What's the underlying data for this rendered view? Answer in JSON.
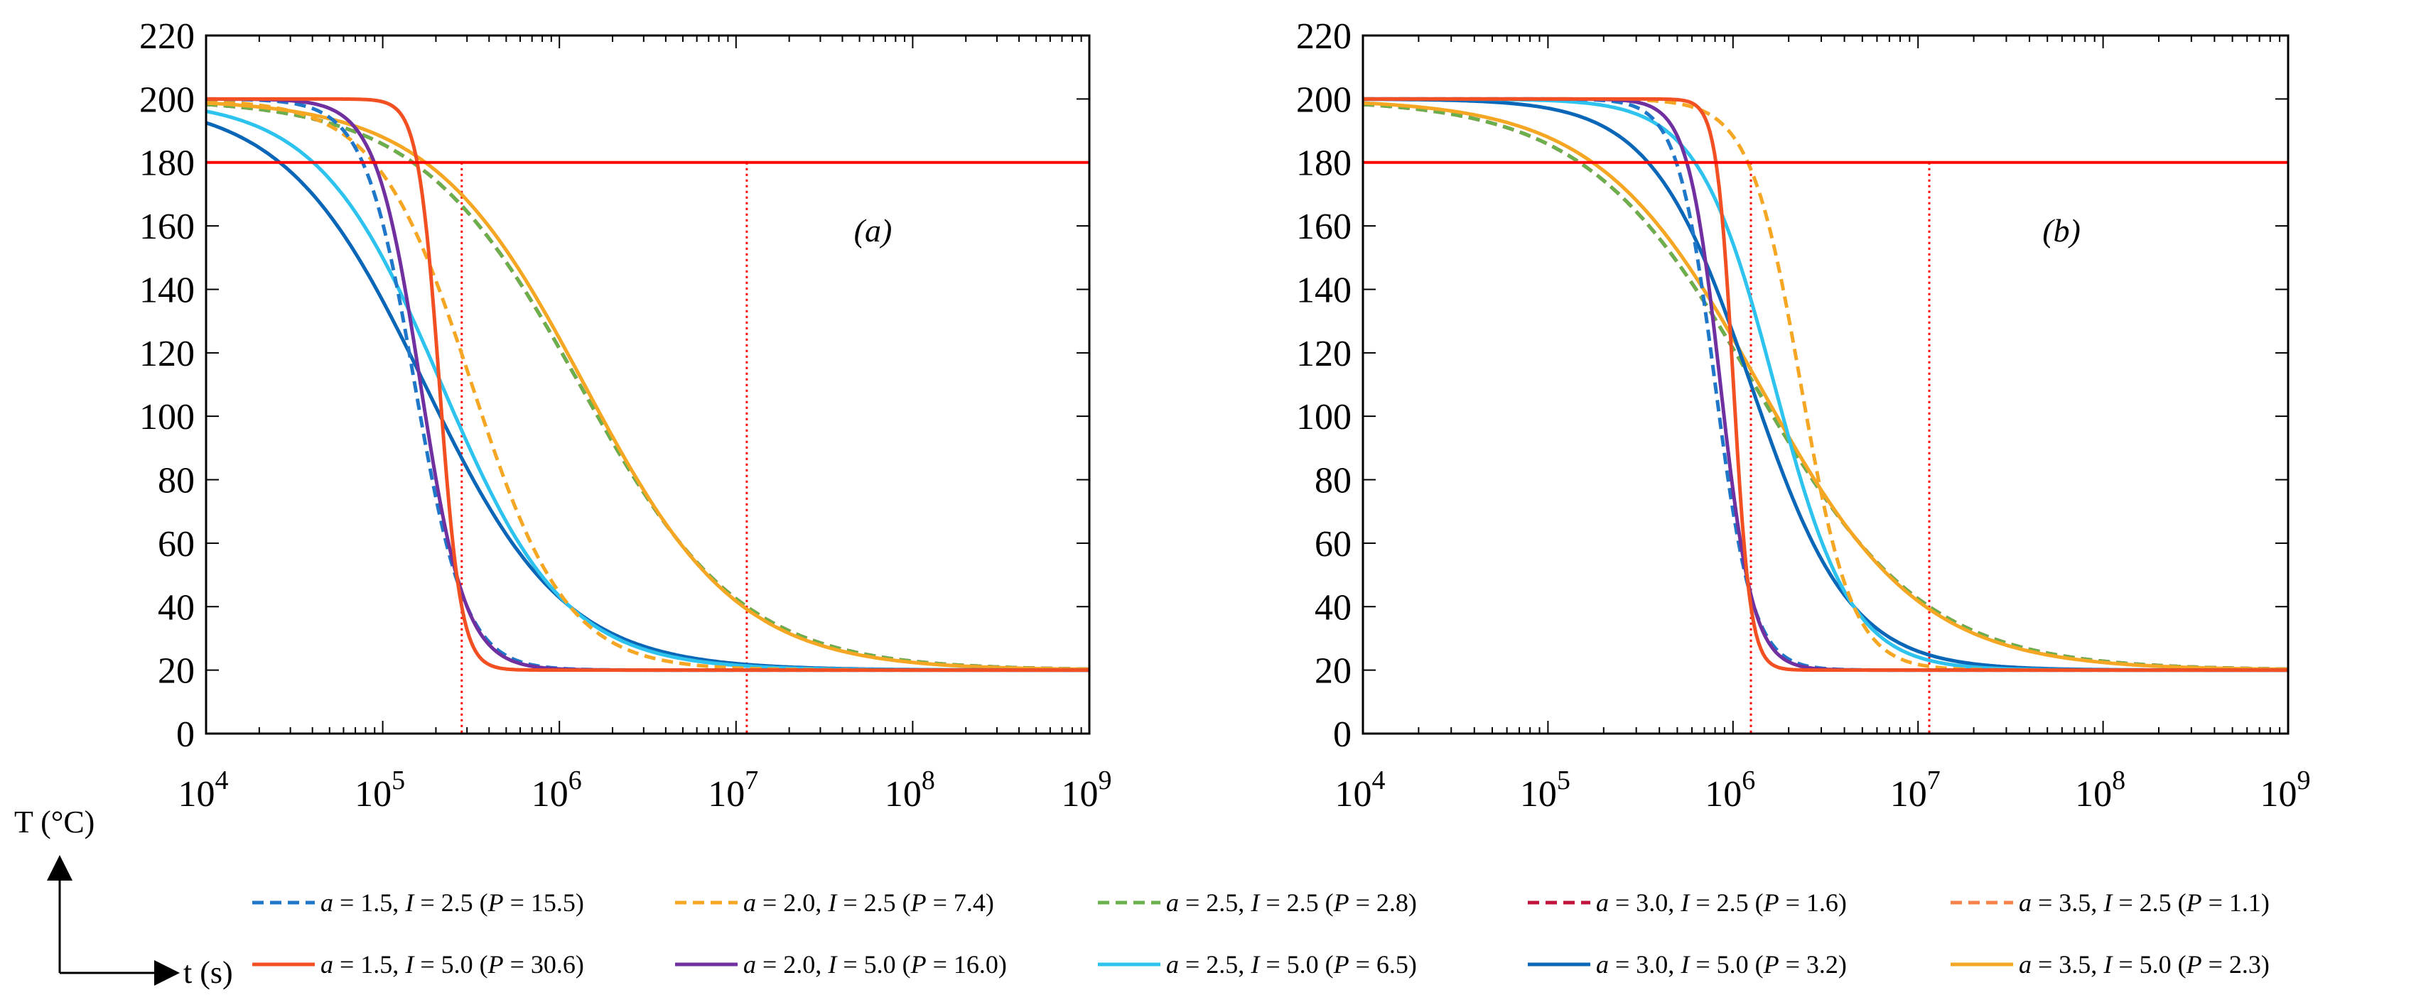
{
  "chart_data": {
    "type": "line",
    "x_scale": "log",
    "xlim": [
      10000,
      1000000000
    ],
    "ylim": [
      0,
      220
    ],
    "x_tick_values": [
      10000,
      100000,
      1000000,
      10000000,
      100000000,
      1000000000
    ],
    "x_tick_base": "10",
    "x_tick_exponents": [
      "4",
      "5",
      "6",
      "7",
      "8",
      "9"
    ],
    "y_ticks": [
      "0",
      "20",
      "40",
      "60",
      "80",
      "100",
      "120",
      "140",
      "160",
      "180",
      "200",
      "220"
    ],
    "ylabel": "T (°C)",
    "xlabel": "t (s)",
    "threshold": 180,
    "colors": {
      "a15": "#1f77c9",
      "a20": "#7030a0",
      "a25": "#2ec3ee",
      "a30": "#0a66b7",
      "a35": "#f5a623",
      "a15_I50": "#f25022",
      "a20_I25": "#f5a623",
      "a25_I25": "#6ab04c",
      "a30_I25": "#c0143c",
      "a35_I25": "#f7834a",
      "threshold": "#ff0000"
    },
    "legend": [
      {
        "key": "s1",
        "label": "a = 1.5, I = 2.5 (P = 15.5)",
        "a": "1.5",
        "I": "2.5",
        "P": "15.5",
        "dash": true
      },
      {
        "key": "s2",
        "label": "a = 2.0, I = 2.5 (P = 7.4)",
        "a": "2.0",
        "I": "2.5",
        "P": "7.4",
        "dash": true
      },
      {
        "key": "s3",
        "label": "a = 2.5, I = 2.5 (P = 2.8)",
        "a": "2.5",
        "I": "2.5",
        "P": "2.8",
        "dash": true
      },
      {
        "key": "s4",
        "label": "a = 3.0, I = 2.5 (P = 1.6)",
        "a": "3.0",
        "I": "2.5",
        "P": "1.6",
        "dash": true
      },
      {
        "key": "s5",
        "label": "a = 3.5, I = 2.5 (P = 1.1)",
        "a": "3.5",
        "I": "2.5",
        "P": "1.1",
        "dash": true
      },
      {
        "key": "s6",
        "label": "a = 1.5, I = 5.0 (P = 30.6)",
        "a": "1.5",
        "I": "5.0",
        "P": "30.6",
        "dash": false
      },
      {
        "key": "s7",
        "label": "a = 2.0, I = 5.0 (P = 16.0)",
        "a": "2.0",
        "I": "5.0",
        "P": "16.0",
        "dash": false
      },
      {
        "key": "s8",
        "label": "a = 2.5, I = 5.0 (P = 6.5)",
        "a": "2.5",
        "I": "5.0",
        "P": "6.5",
        "dash": false
      },
      {
        "key": "s9",
        "label": "a = 3.0, I = 5.0 (P = 3.2)",
        "a": "3.0",
        "I": "5.0",
        "P": "3.2",
        "dash": false
      },
      {
        "key": "s10",
        "label": "a = 3.5, I = 5.0 (P = 2.3)",
        "a": "3.5",
        "I": "5.0",
        "P": "2.3",
        "dash": false
      }
    ],
    "panels": [
      {
        "label": "(a)",
        "label_text": "a",
        "vlines": [
          280000,
          11500000
        ],
        "series": [
          {
            "key": "s5",
            "color": "#f7834a",
            "dash": true,
            "t180": 11500000,
            "slope": 1.0
          },
          {
            "key": "s4",
            "color": "#c0143c",
            "dash": true,
            "t180": 11500000,
            "slope": 1.0
          },
          {
            "key": "s3",
            "color": "#6ab04c",
            "dash": true,
            "t180": 11500000,
            "slope": 1.0
          },
          {
            "key": "s10",
            "color": "#f5a623",
            "dash": false,
            "t180": 11000000,
            "slope": 1.05
          },
          {
            "key": "s9",
            "color": "#0a66b7",
            "dash": false,
            "t180": 1150000,
            "slope": 1.15
          },
          {
            "key": "s8",
            "color": "#2ec3ee",
            "dash": false,
            "t180": 1150000,
            "slope": 1.3
          },
          {
            "key": "s2",
            "color": "#f5a623",
            "dash": true,
            "t180": 1150000,
            "slope": 1.7
          },
          {
            "key": "s1",
            "color": "#1f77c9",
            "dash": true,
            "t180": 300000,
            "slope": 3.2
          },
          {
            "key": "s7",
            "color": "#7030a0",
            "dash": false,
            "t180": 300000,
            "slope": 3.6
          },
          {
            "key": "s6",
            "color": "#f25022",
            "dash": false,
            "t180": 280000,
            "slope": 7.5
          }
        ]
      },
      {
        "label": "(b)",
        "label_text": "b",
        "vlines": [
          1250000,
          11500000
        ],
        "series": [
          {
            "key": "s5",
            "color": "#f7834a",
            "dash": true,
            "t180": 11500000,
            "slope": 1.0
          },
          {
            "key": "s4",
            "color": "#c0143c",
            "dash": true,
            "t180": 11500000,
            "slope": 1.0
          },
          {
            "key": "s3",
            "color": "#6ab04c",
            "dash": true,
            "t180": 11500000,
            "slope": 1.0
          },
          {
            "key": "s10",
            "color": "#f5a623",
            "dash": false,
            "t180": 11000000,
            "slope": 1.05
          },
          {
            "key": "s9",
            "color": "#0a66b7",
            "dash": false,
            "t180": 4500000,
            "slope": 1.7
          },
          {
            "key": "s8",
            "color": "#2ec3ee",
            "dash": false,
            "t180": 4500000,
            "slope": 2.2
          },
          {
            "key": "s2",
            "color": "#f5a623",
            "dash": true,
            "t180": 4500000,
            "slope": 3.3
          },
          {
            "key": "s1",
            "color": "#1f77c9",
            "dash": true,
            "t180": 1300000,
            "slope": 4.5
          },
          {
            "key": "s7",
            "color": "#7030a0",
            "dash": false,
            "t180": 1300000,
            "slope": 5.2
          },
          {
            "key": "s6",
            "color": "#f25022",
            "dash": false,
            "t180": 1250000,
            "slope": 10.0
          }
        ]
      }
    ]
  }
}
